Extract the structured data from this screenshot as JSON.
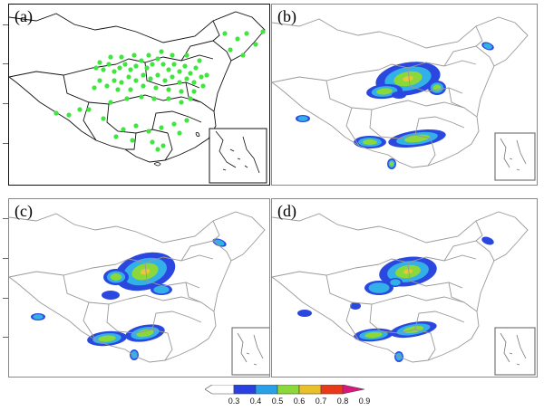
{
  "panels": [
    {
      "id": "a",
      "label": "(a)",
      "type": "station-map",
      "station_color": "#3ee63e"
    },
    {
      "id": "b",
      "label": "(b)",
      "type": "probability-map"
    },
    {
      "id": "c",
      "label": "(c)",
      "type": "probability-map"
    },
    {
      "id": "d",
      "label": "(d)",
      "type": "probability-map"
    }
  ],
  "colorbar": {
    "ticks": [
      "0.3",
      "0.4",
      "0.5",
      "0.6",
      "0.7",
      "0.8",
      "0.9"
    ],
    "colors": [
      "#ffffff",
      "#2a3fe0",
      "#2aa0e8",
      "#8ad83a",
      "#e8c02a",
      "#e83a1a",
      "#d8187a"
    ]
  },
  "colors": {
    "border": "#888888",
    "blob_low": "#2a48e0",
    "blob_mid": "#34b0e8",
    "blob_green": "#8ad83a",
    "blob_yellow": "#e8c838"
  }
}
